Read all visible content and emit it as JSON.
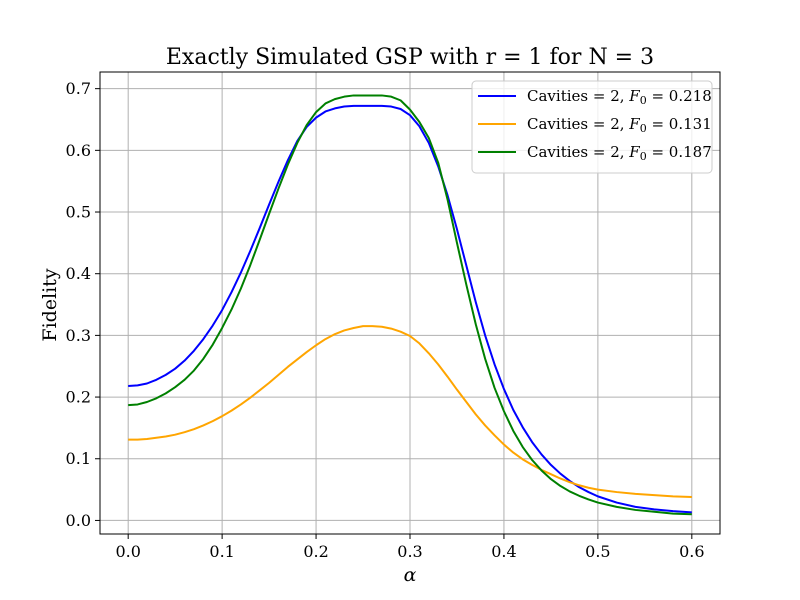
{
  "chart_data": {
    "type": "line",
    "title": "Exactly Simulated GSP with r = 1 for N = 3",
    "xlabel": "α",
    "ylabel": "Fidelity",
    "xlim": [
      -0.03,
      0.63
    ],
    "ylim": [
      -0.022,
      0.727
    ],
    "x_ticks": [
      0.0,
      0.1,
      0.2,
      0.3,
      0.4,
      0.5,
      0.6
    ],
    "x_tick_labels": [
      "0.0",
      "0.1",
      "0.2",
      "0.3",
      "0.4",
      "0.5",
      "0.6"
    ],
    "y_ticks": [
      0.0,
      0.1,
      0.2,
      0.3,
      0.4,
      0.5,
      0.6,
      0.7
    ],
    "y_tick_labels": [
      "0.0",
      "0.1",
      "0.2",
      "0.3",
      "0.4",
      "0.5",
      "0.6",
      "0.7"
    ],
    "grid": true,
    "legend_position": "top-right",
    "x": [
      0.0,
      0.01,
      0.02,
      0.03,
      0.04,
      0.05,
      0.06,
      0.07,
      0.08,
      0.09,
      0.1,
      0.11,
      0.12,
      0.13,
      0.14,
      0.15,
      0.16,
      0.17,
      0.18,
      0.19,
      0.2,
      0.21,
      0.22,
      0.23,
      0.24,
      0.25,
      0.26,
      0.27,
      0.28,
      0.29,
      0.3,
      0.31,
      0.32,
      0.33,
      0.34,
      0.35,
      0.36,
      0.37,
      0.38,
      0.39,
      0.4,
      0.41,
      0.42,
      0.43,
      0.44,
      0.45,
      0.46,
      0.47,
      0.48,
      0.49,
      0.5,
      0.52,
      0.54,
      0.56,
      0.58,
      0.6
    ],
    "series": [
      {
        "name": "Cavities = 2, F₀ =  0.218",
        "legend_prefix": "Cavities = 2, ",
        "legend_var": "F",
        "legend_sub": "0",
        "legend_suffix": " =  0.218",
        "color": "#0000ff",
        "values": [
          0.218,
          0.219,
          0.222,
          0.228,
          0.236,
          0.246,
          0.259,
          0.275,
          0.294,
          0.316,
          0.341,
          0.37,
          0.402,
          0.437,
          0.474,
          0.512,
          0.549,
          0.584,
          0.615,
          0.638,
          0.653,
          0.663,
          0.668,
          0.671,
          0.672,
          0.672,
          0.672,
          0.672,
          0.671,
          0.667,
          0.657,
          0.639,
          0.612,
          0.574,
          0.527,
          0.472,
          0.413,
          0.354,
          0.3,
          0.253,
          0.213,
          0.179,
          0.151,
          0.127,
          0.107,
          0.09,
          0.076,
          0.064,
          0.054,
          0.046,
          0.039,
          0.029,
          0.022,
          0.018,
          0.015,
          0.013
        ]
      },
      {
        "name": "Cavities = 2, F₀ =  0.131",
        "legend_prefix": "Cavities = 2, ",
        "legend_var": "F",
        "legend_sub": "0",
        "legend_suffix": " =  0.131",
        "color": "#ffa500",
        "values": [
          0.131,
          0.131,
          0.132,
          0.134,
          0.136,
          0.139,
          0.143,
          0.148,
          0.154,
          0.161,
          0.169,
          0.178,
          0.188,
          0.199,
          0.211,
          0.223,
          0.236,
          0.249,
          0.261,
          0.273,
          0.284,
          0.294,
          0.302,
          0.308,
          0.312,
          0.315,
          0.315,
          0.314,
          0.311,
          0.306,
          0.299,
          0.287,
          0.271,
          0.253,
          0.233,
          0.212,
          0.192,
          0.172,
          0.154,
          0.138,
          0.123,
          0.11,
          0.099,
          0.09,
          0.082,
          0.075,
          0.068,
          0.062,
          0.057,
          0.053,
          0.05,
          0.046,
          0.043,
          0.041,
          0.039,
          0.038
        ]
      },
      {
        "name": "Cavities = 2, F₀ =  0.187",
        "legend_prefix": "Cavities = 2, ",
        "legend_var": "F",
        "legend_sub": "0",
        "legend_suffix": " =  0.187",
        "color": "#008000",
        "values": [
          0.187,
          0.188,
          0.192,
          0.198,
          0.206,
          0.216,
          0.228,
          0.243,
          0.262,
          0.285,
          0.312,
          0.342,
          0.376,
          0.414,
          0.455,
          0.497,
          0.538,
          0.577,
          0.612,
          0.641,
          0.662,
          0.676,
          0.683,
          0.687,
          0.689,
          0.689,
          0.689,
          0.689,
          0.687,
          0.681,
          0.666,
          0.646,
          0.62,
          0.58,
          0.52,
          0.45,
          0.382,
          0.318,
          0.262,
          0.215,
          0.177,
          0.145,
          0.119,
          0.098,
          0.081,
          0.067,
          0.056,
          0.047,
          0.04,
          0.034,
          0.029,
          0.022,
          0.017,
          0.014,
          0.011,
          0.01
        ]
      }
    ]
  }
}
